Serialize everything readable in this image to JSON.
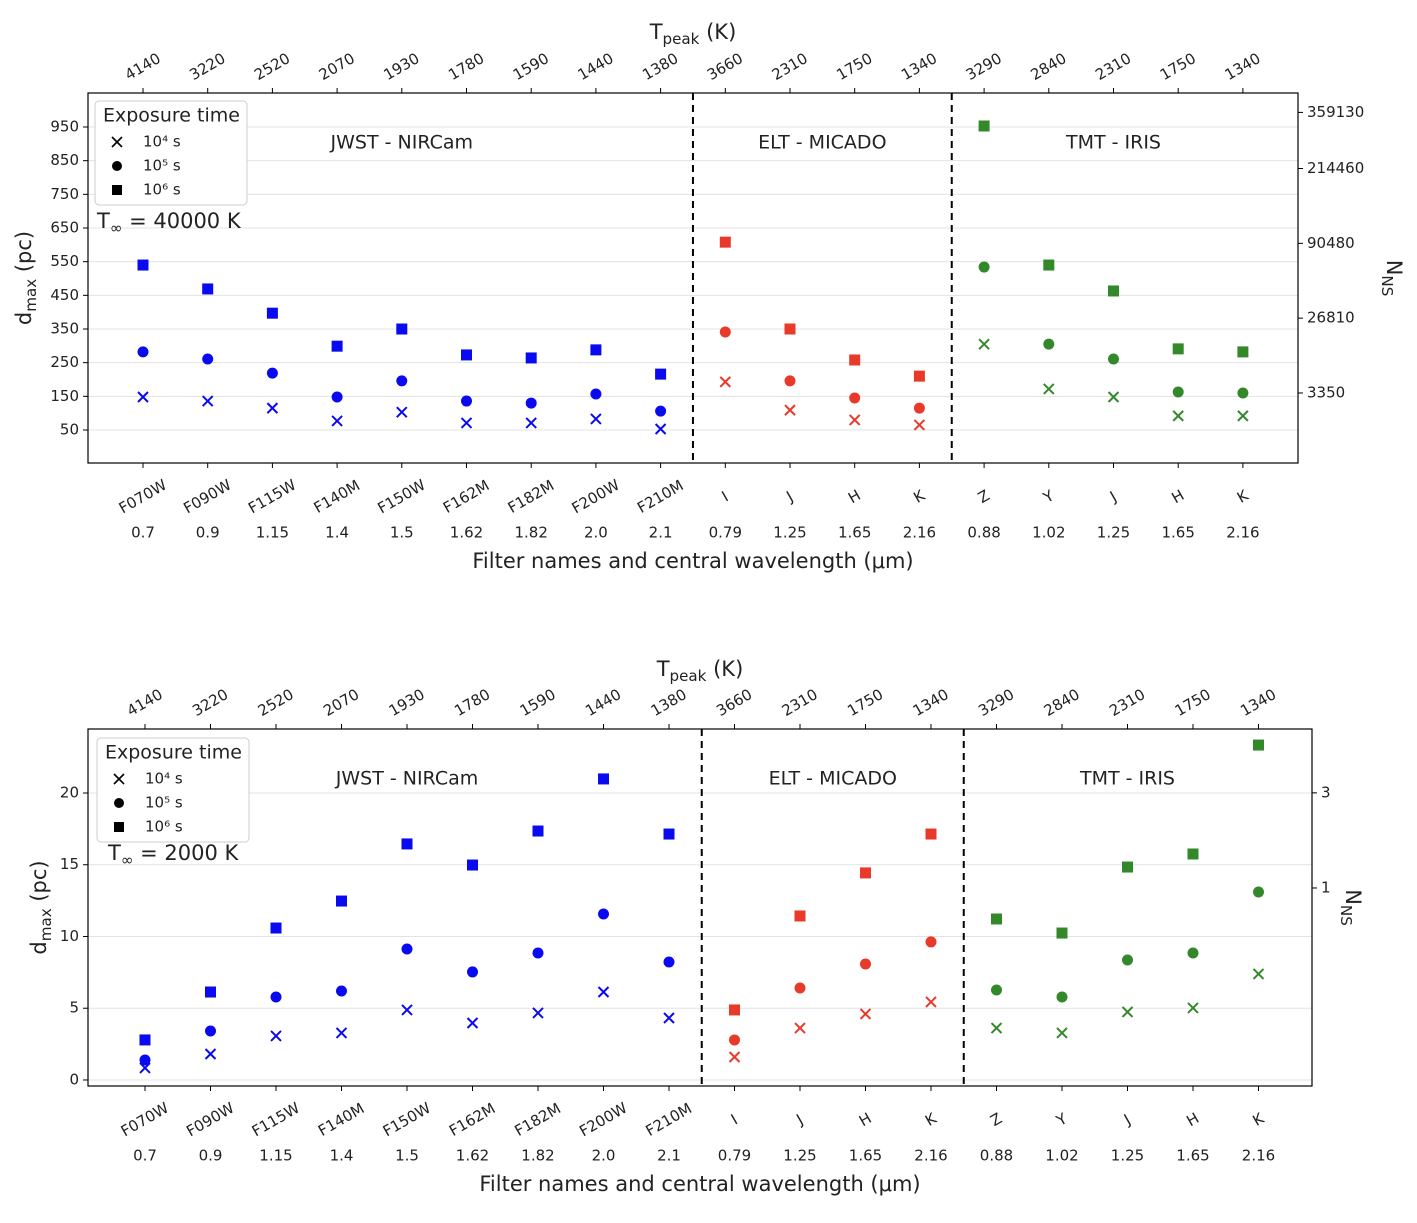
{
  "chart_data": [
    {
      "type": "scatter",
      "top_xlabel": {
        "text": "T",
        "sub": "peak",
        "after": " (K)"
      },
      "xlabel": "Filter names and central wavelength (μm)",
      "ylabel": {
        "text": "d",
        "sub": "max",
        "after": " (pc)"
      },
      "y2label": {
        "text": "N",
        "sub": "NS"
      },
      "annotation": {
        "text": "T",
        "sub": "∞",
        "after": " = 40000 K"
      },
      "legend": {
        "title": "Exposure time",
        "position": "upper left",
        "entries": [
          {
            "name": "10⁴ s",
            "marker": "x"
          },
          {
            "name": "10⁵ s",
            "marker": "o"
          },
          {
            "name": "10⁶ s",
            "marker": "s"
          }
        ]
      },
      "ylim": [
        -48,
        1051
      ],
      "yticks": [
        50,
        150,
        250,
        350,
        450,
        550,
        650,
        750,
        850,
        950
      ],
      "y2scale": "cbrt",
      "y2lim": [
        0.88,
        421200
      ],
      "y2ticks": [
        3350,
        26810,
        90480,
        214460,
        359130
      ],
      "grid": true,
      "groups": [
        {
          "name": "JWST - NIRCam",
          "color": "#0a0af0",
          "filters": [
            "F070W",
            "F090W",
            "F115W",
            "F140M",
            "F150W",
            "F162M",
            "F182M",
            "F200W",
            "F210M"
          ],
          "wavelengths": [
            "0.7",
            "0.9",
            "1.15",
            "1.4",
            "1.5",
            "1.62",
            "1.82",
            "2.0",
            "2.1"
          ],
          "tpeak": [
            "4140",
            "3220",
            "2520",
            "2070",
            "1930",
            "1780",
            "1590",
            "1440",
            "1380"
          ],
          "series": [
            {
              "values": [
                148,
                136,
                115,
                77,
                103,
                71,
                71,
                83,
                53
              ]
            },
            {
              "values": [
                282,
                261,
                219,
                148,
                196,
                136,
                130,
                157,
                106
              ]
            },
            {
              "values": [
                540,
                469,
                397,
                299,
                350,
                273,
                264,
                288,
                216
              ]
            }
          ]
        },
        {
          "name": "ELT - MICADO",
          "color": "#e8392a",
          "filters": [
            "I",
            "J",
            "H",
            "K"
          ],
          "wavelengths": [
            "0.79",
            "1.25",
            "1.65",
            "2.16"
          ],
          "tpeak": [
            "3660",
            "2310",
            "1750",
            "1340"
          ],
          "series": [
            {
              "values": [
                193,
                109,
                80,
                65
              ]
            },
            {
              "values": [
                341,
                196,
                145,
                115
              ]
            },
            {
              "values": [
                608,
                350,
                258,
                210
              ]
            }
          ]
        },
        {
          "name": "TMT - IRIS",
          "color": "#33892a",
          "filters": [
            "Z",
            "Y",
            "J",
            "H",
            "K"
          ],
          "wavelengths": [
            "0.88",
            "1.02",
            "1.25",
            "1.65",
            "2.16"
          ],
          "tpeak": [
            "3290",
            "2840",
            "2310",
            "1750",
            "1340"
          ],
          "series": [
            {
              "values": [
                305,
                172,
                148,
                92,
                92
              ]
            },
            {
              "values": [
                534,
                305,
                261,
                163,
                160
              ]
            },
            {
              "values": [
                953,
                540,
                463,
                291,
                282
              ]
            }
          ]
        }
      ]
    },
    {
      "type": "scatter",
      "top_xlabel": {
        "text": "T",
        "sub": "peak",
        "after": " (K)"
      },
      "xlabel": "Filter names and central wavelength (μm)",
      "ylabel": {
        "text": "d",
        "sub": "max",
        "after": " (pc)"
      },
      "y2label": {
        "text": "N",
        "sub": "NS"
      },
      "annotation": {
        "text": "T",
        "sub": "∞",
        "after": " = 2000 K"
      },
      "legend": {
        "title": "Exposure time",
        "position": "upper left",
        "entries": [
          {
            "name": "10⁴ s",
            "marker": "x"
          },
          {
            "name": "10⁵ s",
            "marker": "o"
          },
          {
            "name": "10⁶ s",
            "marker": "s"
          }
        ]
      },
      "ylim": [
        -0.42,
        24.46
      ],
      "yticks": [
        0,
        5,
        10,
        15,
        20
      ],
      "y2scale": "cbrt",
      "y2lim": [
        0.0005,
        5.26
      ],
      "y2ticks": [
        1,
        3
      ],
      "grid": true,
      "groups": [
        {
          "name": "JWST - NIRCam",
          "color": "#0a0af0",
          "filters": [
            "F070W",
            "F090W",
            "F115W",
            "F140M",
            "F150W",
            "F162M",
            "F182M",
            "F200W",
            "F210M"
          ],
          "wavelengths": [
            "0.7",
            "0.9",
            "1.15",
            "1.4",
            "1.5",
            "1.62",
            "1.82",
            "2.0",
            "2.1"
          ],
          "tpeak": [
            "4140",
            "3220",
            "2520",
            "2070",
            "1930",
            "1780",
            "1590",
            "1440",
            "1380"
          ],
          "series": [
            {
              "values": [
                0.84,
                1.81,
                3.07,
                3.28,
                4.88,
                3.97,
                4.67,
                6.13,
                4.32
              ]
            },
            {
              "values": [
                1.39,
                3.41,
                5.78,
                6.2,
                9.13,
                7.53,
                8.85,
                11.57,
                8.22
              ]
            },
            {
              "values": [
                2.79,
                6.13,
                10.59,
                12.47,
                16.45,
                14.98,
                17.35,
                20.98,
                17.14
              ]
            }
          ]
        },
        {
          "name": "ELT - MICADO",
          "color": "#e8392a",
          "filters": [
            "I",
            "J",
            "H",
            "K"
          ],
          "wavelengths": [
            "0.79",
            "1.25",
            "1.65",
            "2.16"
          ],
          "tpeak": [
            "3660",
            "2310",
            "1750",
            "1340"
          ],
          "series": [
            {
              "values": [
                1.6,
                3.62,
                4.6,
                5.44
              ]
            },
            {
              "values": [
                2.79,
                6.41,
                8.08,
                9.62
              ]
            },
            {
              "values": [
                4.88,
                11.43,
                14.43,
                17.14
              ]
            }
          ]
        },
        {
          "name": "TMT - IRIS",
          "color": "#33892a",
          "filters": [
            "Z",
            "Y",
            "J",
            "H",
            "K"
          ],
          "wavelengths": [
            "0.88",
            "1.02",
            "1.25",
            "1.65",
            "2.16"
          ],
          "tpeak": [
            "3290",
            "2840",
            "2310",
            "1750",
            "1340"
          ],
          "series": [
            {
              "values": [
                3.62,
                3.28,
                4.74,
                5.02,
                7.39
              ]
            },
            {
              "values": [
                6.27,
                5.78,
                8.36,
                8.85,
                13.1
              ]
            },
            {
              "values": [
                11.22,
                10.24,
                14.84,
                15.75,
                23.34
              ]
            }
          ]
        }
      ]
    }
  ]
}
